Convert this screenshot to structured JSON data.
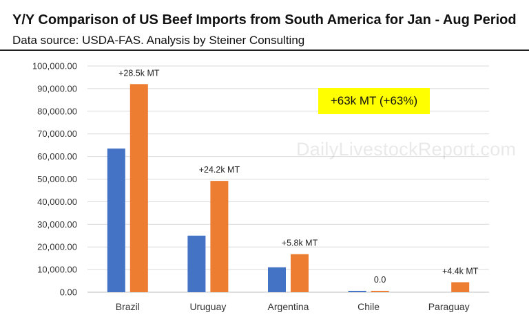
{
  "chart_data": {
    "type": "bar",
    "title": "Y/Y Comparison of US Beef Imports from South America for Jan - Aug Period",
    "subtitle": "Data source: USDA-FAS.   Analysis by Steiner Consulting",
    "categories": [
      "Brazil",
      "Uruguay",
      "Argentina",
      "Chile",
      "Paraguay"
    ],
    "series": [
      {
        "values": [
          63500,
          25000,
          11000,
          600,
          0
        ],
        "color": "#4472c4"
      },
      {
        "values": [
          92000,
          49200,
          16800,
          600,
          4400
        ],
        "color": "#ed7d31"
      }
    ],
    "annotations": [
      "+28.5k MT",
      "+24.2k MT",
      "+5.8k MT",
      "0.0",
      "+4.4k MT"
    ],
    "callout": "+63k MT (+63%)",
    "watermark": "DailyLivestockReport.com",
    "ylim": [
      0,
      100000
    ],
    "yticks": [
      0,
      10000,
      20000,
      30000,
      40000,
      50000,
      60000,
      70000,
      80000,
      90000,
      100000
    ],
    "ytick_labels": [
      "0.00",
      "10,000.00",
      "20,000.00",
      "30,000.00",
      "40,000.00",
      "50,000.00",
      "60,000.00",
      "70,000.00",
      "80,000.00",
      "90,000.00",
      "100,000.00"
    ],
    "grid": true,
    "legend": "none"
  }
}
